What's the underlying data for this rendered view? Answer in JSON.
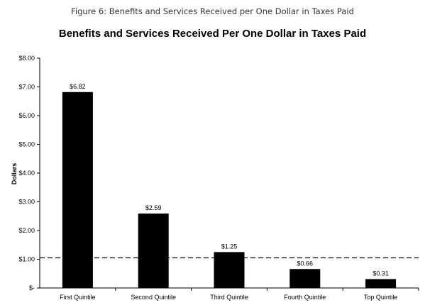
{
  "figure_caption": "Figure 6: Benefits and Services Received per One Dollar in Taxes Paid",
  "chart_data": {
    "type": "bar",
    "title": "Benefits and Services Received Per One Dollar in Taxes Paid",
    "xlabel": "",
    "ylabel": "Dollars",
    "categories": [
      "First Quintile",
      "Second Quintile",
      "Third Quintile",
      "Fourth Quintile",
      "Top Quintile"
    ],
    "values": [
      6.82,
      2.59,
      1.25,
      0.66,
      0.31
    ],
    "data_labels": [
      "$6.82",
      "$2.59",
      "$1.25",
      "$0.66",
      "$0.31"
    ],
    "ylim": [
      0,
      8
    ],
    "yticks": [
      0,
      1,
      2,
      3,
      4,
      5,
      6,
      7,
      8
    ],
    "ytick_labels": [
      "$-",
      "$1.00",
      "$2.00",
      "$3.00",
      "$4.00",
      "$5.00",
      "$6.00",
      "$7.00",
      "$8.00"
    ],
    "reference_line": {
      "value": 1.0,
      "style": "dashed"
    },
    "grid": false,
    "bar_color": "#000000"
  }
}
